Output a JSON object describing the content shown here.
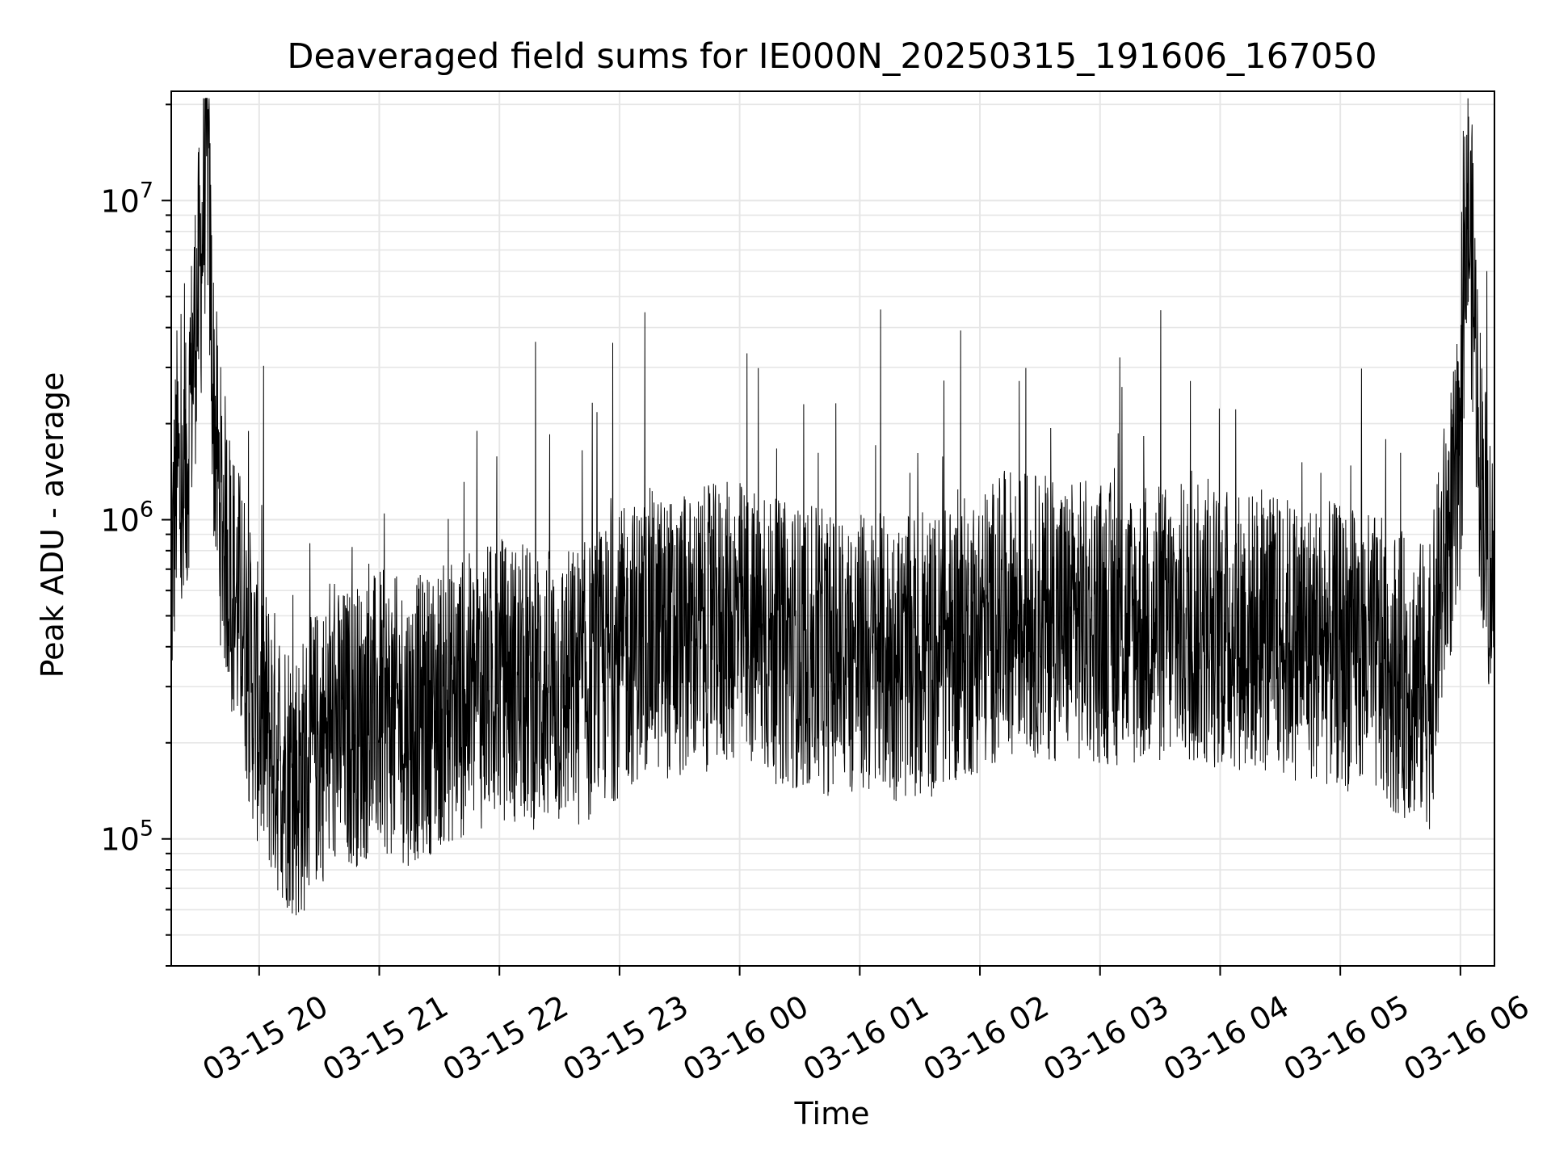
{
  "chart_data": {
    "type": "line",
    "title": "Deaveraged field sums for IE000N_20250315_191606_167050",
    "xlabel": "Time",
    "ylabel": "Peak ADU - average",
    "y_scale": "log",
    "ylim": [
      40000,
      22000000
    ],
    "xlim": [
      "2025-03-15 19:16:06",
      "2025-03-16 06:17:00"
    ],
    "grid": true,
    "line_color": "#000000",
    "y_tick_labels": [
      {
        "base": "10",
        "exp": "5",
        "value": 100000
      },
      {
        "base": "10",
        "exp": "6",
        "value": 1000000
      },
      {
        "base": "10",
        "exp": "7",
        "value": 10000000
      }
    ],
    "x_ticks": [
      {
        "label": "03-15 20",
        "value": "2025-03-15 20:00"
      },
      {
        "label": "03-15 21",
        "value": "2025-03-15 21:00"
      },
      {
        "label": "03-15 22",
        "value": "2025-03-15 22:00"
      },
      {
        "label": "03-15 23",
        "value": "2025-03-15 23:00"
      },
      {
        "label": "03-16 00",
        "value": "2025-03-16 00:00"
      },
      {
        "label": "03-16 01",
        "value": "2025-03-16 01:00"
      },
      {
        "label": "03-16 02",
        "value": "2025-03-16 02:00"
      },
      {
        "label": "03-16 03",
        "value": "2025-03-16 03:00"
      },
      {
        "label": "03-16 04",
        "value": "2025-03-16 04:00"
      },
      {
        "label": "03-16 05",
        "value": "2025-03-16 05:00"
      },
      {
        "label": "03-16 06",
        "value": "2025-03-16 06:00"
      }
    ],
    "series": [
      {
        "values": [
          [
            "2025-03-15 19:16",
            600000
          ],
          [
            "2025-03-15 19:19",
            1500000
          ],
          [
            "2025-03-15 19:22",
            900000
          ],
          [
            "2025-03-15 19:25",
            2000000
          ],
          [
            "2025-03-15 19:28",
            4000000
          ],
          [
            "2025-03-15 19:31",
            6500000
          ],
          [
            "2025-03-15 19:34",
            16000000
          ],
          [
            "2025-03-15 19:37",
            2500000
          ],
          [
            "2025-03-15 19:40",
            1200000
          ],
          [
            "2025-03-15 19:43",
            900000
          ],
          [
            "2025-03-15 19:46",
            700000
          ],
          [
            "2025-03-15 19:49",
            550000
          ],
          [
            "2025-03-15 19:52",
            500000
          ],
          [
            "2025-03-15 19:55",
            350000
          ],
          [
            "2025-03-15 20:00",
            250000
          ],
          [
            "2025-03-15 20:10",
            180000
          ],
          [
            "2025-03-15 20:20",
            150000
          ],
          [
            "2025-03-15 20:30",
            200000
          ],
          [
            "2025-03-15 20:40",
            220000
          ],
          [
            "2025-03-15 20:50",
            230000
          ],
          [
            "2025-03-15 21:00",
            250000
          ],
          [
            "2025-03-15 21:15",
            230000
          ],
          [
            "2025-03-15 21:30",
            260000
          ],
          [
            "2025-03-15 21:45",
            280000
          ],
          [
            "2025-03-15 22:00",
            320000
          ],
          [
            "2025-03-15 22:15",
            300000
          ],
          [
            "2025-03-15 22:30",
            290000
          ],
          [
            "2025-03-15 22:45",
            310000
          ],
          [
            "2025-03-15 23:00",
            380000
          ],
          [
            "2025-03-15 23:15",
            450000
          ],
          [
            "2025-03-15 23:30",
            420000
          ],
          [
            "2025-03-15 23:45",
            460000
          ],
          [
            "2025-03-16 00:00",
            480000
          ],
          [
            "2025-03-16 00:15",
            420000
          ],
          [
            "2025-03-16 00:30",
            400000
          ],
          [
            "2025-03-16 00:45",
            380000
          ],
          [
            "2025-03-16 01:00",
            380000
          ],
          [
            "2025-03-16 01:15",
            370000
          ],
          [
            "2025-03-16 01:30",
            360000
          ],
          [
            "2025-03-16 01:45",
            400000
          ],
          [
            "2025-03-16 02:00",
            450000
          ],
          [
            "2025-03-16 02:15",
            520000
          ],
          [
            "2025-03-16 02:30",
            500000
          ],
          [
            "2025-03-16 02:45",
            480000
          ],
          [
            "2025-03-16 03:00",
            480000
          ],
          [
            "2025-03-16 03:15",
            460000
          ],
          [
            "2025-03-16 03:30",
            470000
          ],
          [
            "2025-03-16 03:45",
            470000
          ],
          [
            "2025-03-16 04:00",
            460000
          ],
          [
            "2025-03-16 04:15",
            450000
          ],
          [
            "2025-03-16 04:30",
            430000
          ],
          [
            "2025-03-16 04:45",
            420000
          ],
          [
            "2025-03-16 05:00",
            400000
          ],
          [
            "2025-03-16 05:15",
            380000
          ],
          [
            "2025-03-16 05:30",
            330000
          ],
          [
            "2025-03-16 05:45",
            300000
          ],
          [
            "2025-03-16 05:50",
            600000
          ],
          [
            "2025-03-16 05:55",
            1000000
          ],
          [
            "2025-03-16 06:00",
            1200000
          ],
          [
            "2025-03-16 06:03",
            11000000
          ],
          [
            "2025-03-16 06:06",
            6000000
          ],
          [
            "2025-03-16 06:10",
            1500000
          ],
          [
            "2025-03-16 06:14",
            800000
          ],
          [
            "2025-03-16 06:17",
            600000
          ]
        ]
      }
    ]
  }
}
